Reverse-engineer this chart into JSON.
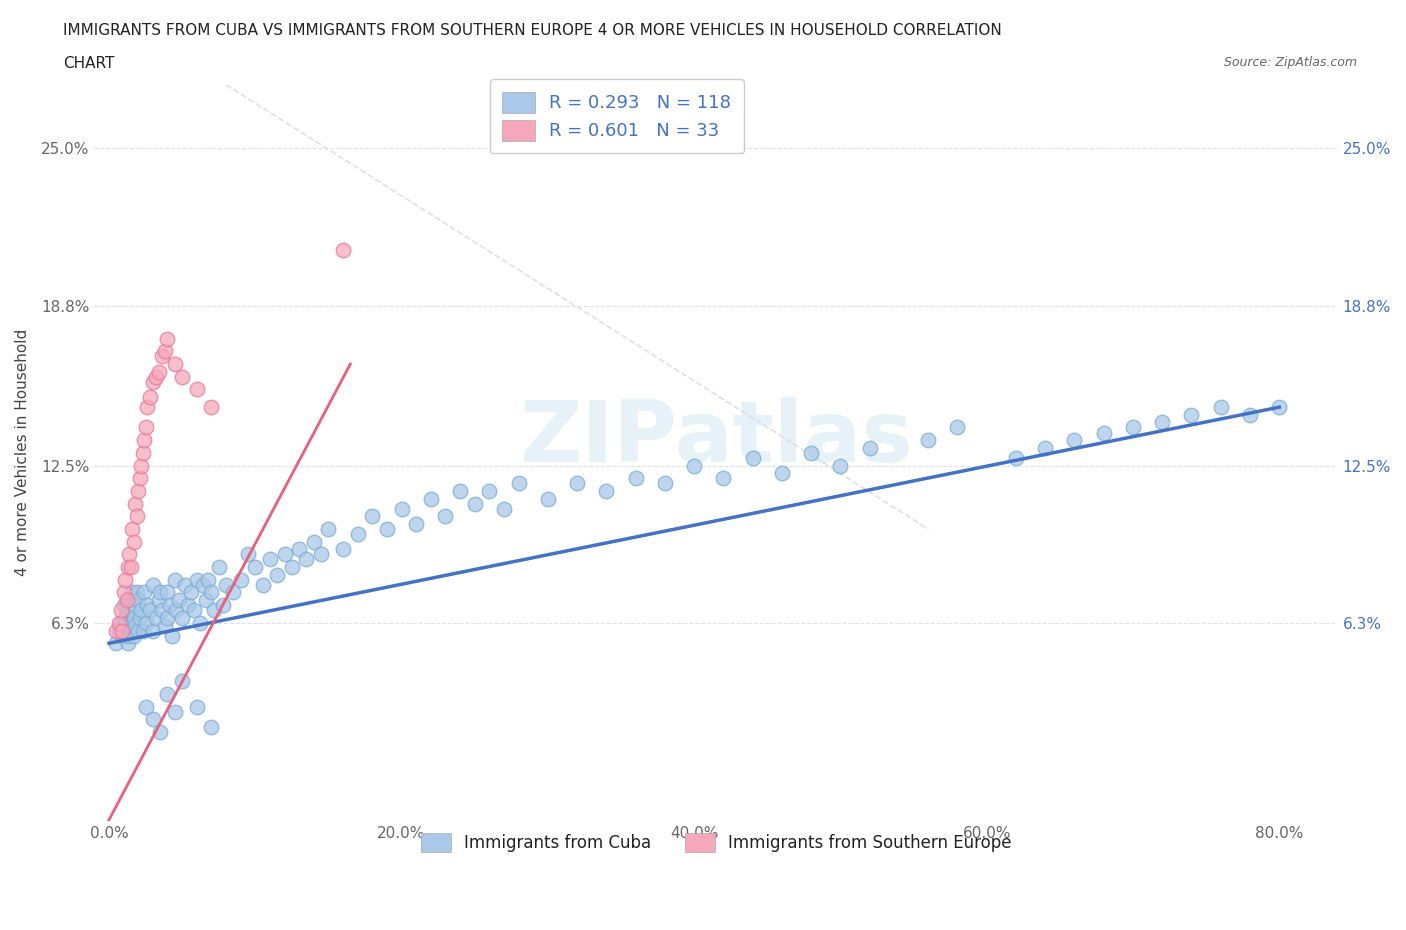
{
  "title_line1": "IMMIGRANTS FROM CUBA VS IMMIGRANTS FROM SOUTHERN EUROPE 4 OR MORE VEHICLES IN HOUSEHOLD CORRELATION",
  "title_line2": "CHART",
  "source_text": "Source: ZipAtlas.com",
  "ylabel": "4 or more Vehicles in Household",
  "xticklabels": [
    "0.0%",
    "20.0%",
    "40.0%",
    "60.0%",
    "80.0%"
  ],
  "yticklabels_left": [
    "6.3%",
    "12.5%",
    "18.8%",
    "25.0%"
  ],
  "yticklabels_right": [
    "6.3%",
    "12.5%",
    "18.8%",
    "25.0%"
  ],
  "xlim": [
    -0.01,
    0.84
  ],
  "ylim": [
    -0.015,
    0.275
  ],
  "ytick_vals": [
    0.063,
    0.125,
    0.188,
    0.25
  ],
  "xtick_vals": [
    0.0,
    0.2,
    0.4,
    0.6,
    0.8
  ],
  "r_cuba": 0.293,
  "n_cuba": 118,
  "r_europe": 0.601,
  "n_europe": 33,
  "cuba_color": "#aac8e8",
  "europe_color": "#f5a8bc",
  "cuba_edge_color": "#7aadd4",
  "europe_edge_color": "#e87898",
  "cuba_line_color": "#4472c4",
  "europe_line_color": "#e8607a",
  "diag_line_color": "#d8d8d8",
  "grid_color": "#e0e0e0",
  "watermark": "ZIPatlas",
  "legend_label_cuba": "Immigrants from Cuba",
  "legend_label_europe": "Immigrants from Southern Europe",
  "cuba_scatter_x": [
    0.005,
    0.007,
    0.008,
    0.009,
    0.01,
    0.01,
    0.011,
    0.012,
    0.012,
    0.013,
    0.013,
    0.014,
    0.015,
    0.015,
    0.016,
    0.016,
    0.017,
    0.017,
    0.018,
    0.018,
    0.019,
    0.02,
    0.02,
    0.021,
    0.022,
    0.023,
    0.024,
    0.025,
    0.026,
    0.028,
    0.03,
    0.03,
    0.032,
    0.034,
    0.035,
    0.036,
    0.038,
    0.04,
    0.04,
    0.042,
    0.043,
    0.045,
    0.046,
    0.048,
    0.05,
    0.052,
    0.054,
    0.056,
    0.058,
    0.06,
    0.062,
    0.064,
    0.066,
    0.068,
    0.07,
    0.072,
    0.075,
    0.078,
    0.08,
    0.085,
    0.09,
    0.095,
    0.1,
    0.105,
    0.11,
    0.115,
    0.12,
    0.125,
    0.13,
    0.135,
    0.14,
    0.145,
    0.15,
    0.16,
    0.17,
    0.18,
    0.19,
    0.2,
    0.21,
    0.22,
    0.23,
    0.24,
    0.25,
    0.26,
    0.27,
    0.28,
    0.3,
    0.32,
    0.34,
    0.36,
    0.38,
    0.4,
    0.42,
    0.44,
    0.46,
    0.48,
    0.5,
    0.52,
    0.56,
    0.58,
    0.62,
    0.64,
    0.66,
    0.68,
    0.7,
    0.72,
    0.74,
    0.76,
    0.78,
    0.8,
    0.025,
    0.03,
    0.035,
    0.04,
    0.045,
    0.05,
    0.06,
    0.07
  ],
  "cuba_scatter_y": [
    0.055,
    0.06,
    0.063,
    0.058,
    0.062,
    0.07,
    0.065,
    0.06,
    0.068,
    0.055,
    0.072,
    0.058,
    0.063,
    0.068,
    0.06,
    0.075,
    0.058,
    0.065,
    0.07,
    0.062,
    0.075,
    0.06,
    0.072,
    0.065,
    0.068,
    0.06,
    0.075,
    0.063,
    0.07,
    0.068,
    0.06,
    0.078,
    0.065,
    0.072,
    0.075,
    0.068,
    0.062,
    0.075,
    0.065,
    0.07,
    0.058,
    0.08,
    0.068,
    0.072,
    0.065,
    0.078,
    0.07,
    0.075,
    0.068,
    0.08,
    0.063,
    0.078,
    0.072,
    0.08,
    0.075,
    0.068,
    0.085,
    0.07,
    0.078,
    0.075,
    0.08,
    0.09,
    0.085,
    0.078,
    0.088,
    0.082,
    0.09,
    0.085,
    0.092,
    0.088,
    0.095,
    0.09,
    0.1,
    0.092,
    0.098,
    0.105,
    0.1,
    0.108,
    0.102,
    0.112,
    0.105,
    0.115,
    0.11,
    0.115,
    0.108,
    0.118,
    0.112,
    0.118,
    0.115,
    0.12,
    0.118,
    0.125,
    0.12,
    0.128,
    0.122,
    0.13,
    0.125,
    0.132,
    0.135,
    0.14,
    0.128,
    0.132,
    0.135,
    0.138,
    0.14,
    0.142,
    0.145,
    0.148,
    0.145,
    0.148,
    0.03,
    0.025,
    0.02,
    0.035,
    0.028,
    0.04,
    0.03,
    0.022
  ],
  "europe_scatter_x": [
    0.005,
    0.007,
    0.008,
    0.009,
    0.01,
    0.011,
    0.012,
    0.013,
    0.014,
    0.015,
    0.016,
    0.017,
    0.018,
    0.019,
    0.02,
    0.021,
    0.022,
    0.023,
    0.024,
    0.025,
    0.026,
    0.028,
    0.03,
    0.032,
    0.034,
    0.036,
    0.038,
    0.04,
    0.045,
    0.05,
    0.06,
    0.07,
    0.16
  ],
  "europe_scatter_y": [
    0.06,
    0.063,
    0.068,
    0.06,
    0.075,
    0.08,
    0.072,
    0.085,
    0.09,
    0.085,
    0.1,
    0.095,
    0.11,
    0.105,
    0.115,
    0.12,
    0.125,
    0.13,
    0.135,
    0.14,
    0.148,
    0.152,
    0.158,
    0.16,
    0.162,
    0.168,
    0.17,
    0.175,
    0.165,
    0.16,
    0.155,
    0.148,
    0.21
  ],
  "background_color": "#ffffff",
  "title_color": "#222222",
  "axis_label_color": "#444444",
  "tick_color": "#666666",
  "right_tick_color": "#4472c4"
}
